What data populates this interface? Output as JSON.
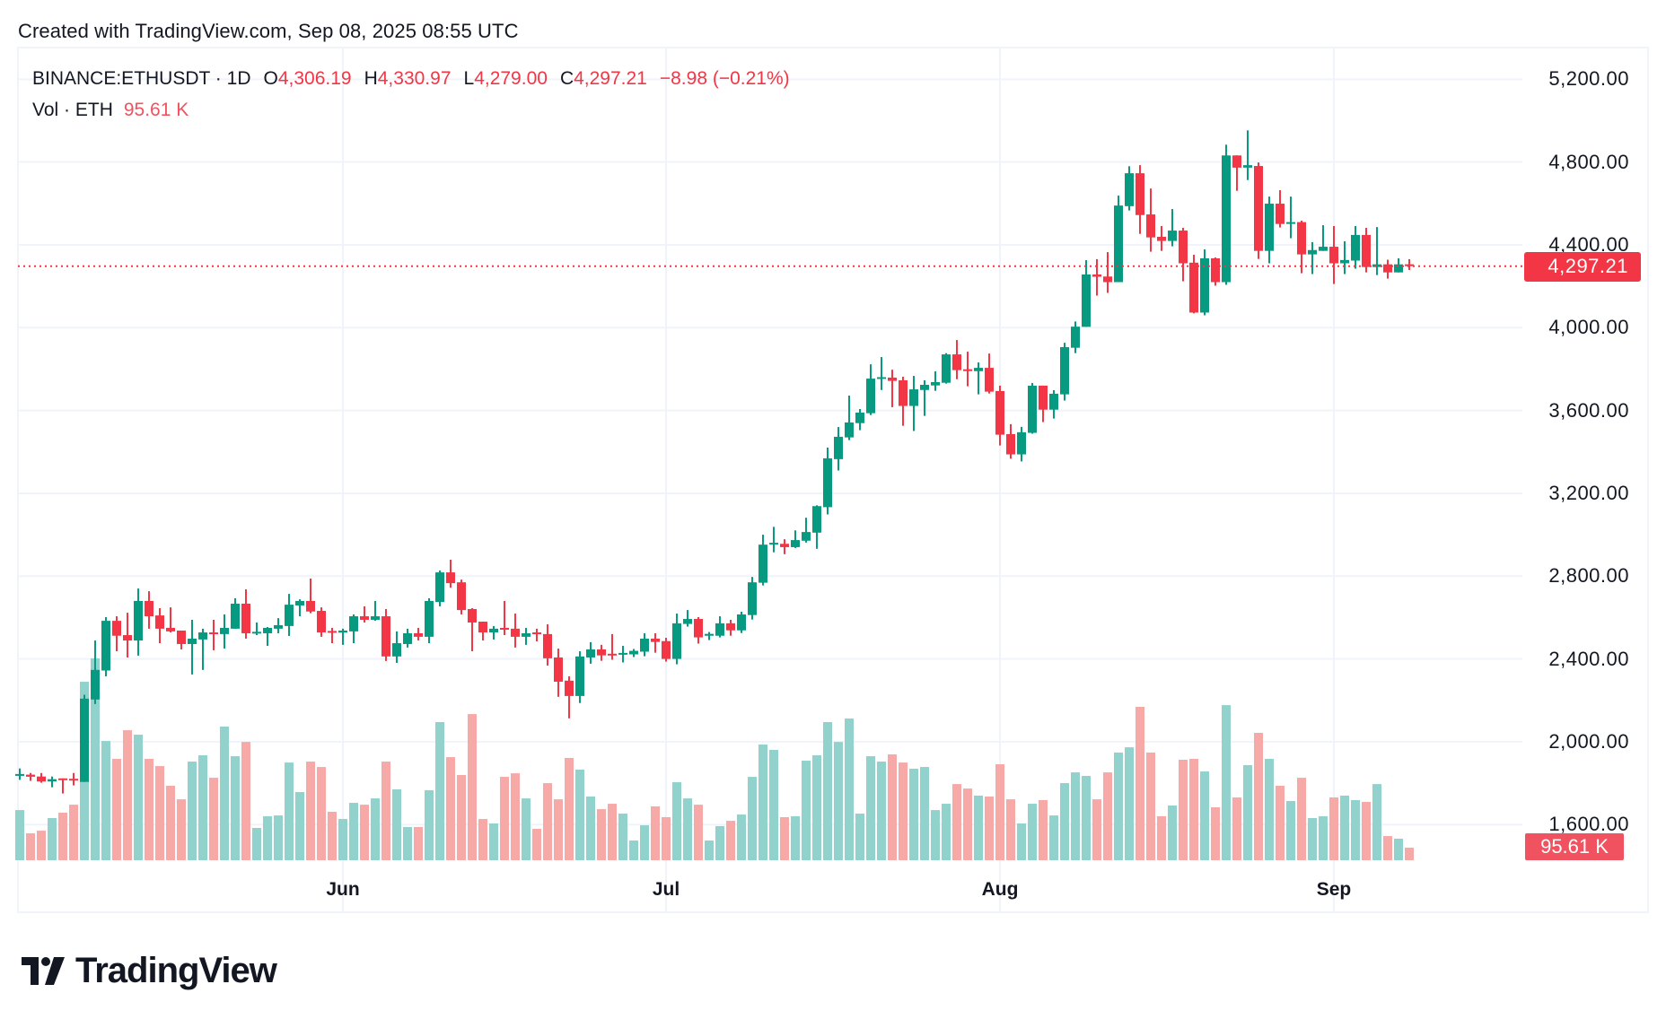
{
  "header": {
    "created_text": "Created with TradingView.com, Sep 08, 2025 08:55 UTC"
  },
  "legend": {
    "symbol": "BINANCE:ETHUSDT · 1D",
    "open_label": "O",
    "open": "4,306.19",
    "high_label": "H",
    "high": "4,330.97",
    "low_label": "L",
    "low": "4,279.00",
    "close_label": "C",
    "close": "4,297.21",
    "change": "−8.98 (−0.21%)",
    "vol_label": "Vol · ETH",
    "vol": "95.61 K"
  },
  "last_price_badge": "4,297.21",
  "last_volume_badge": "95.61 K",
  "logo_text": "TradingView",
  "colors": {
    "up": "#089981",
    "down": "#F23645",
    "vol_up": "#92D2CC",
    "vol_down": "#F7A9A7",
    "grid": "#F0F3FA"
  },
  "chart_data": {
    "type": "candlestick",
    "title": "",
    "symbol": "BINANCE:ETHUSDT",
    "interval": "1D",
    "ylim": [
      1600,
      5200
    ],
    "grid": true,
    "price_ticks": [
      "5,200.00",
      "4,800.00",
      "4,400.00",
      "4,000.00",
      "3,600.00",
      "3,200.00",
      "2,800.00",
      "2,400.00",
      "2,000.00",
      "1,600.00"
    ],
    "price_tick_values": [
      5200,
      4800,
      4400,
      4000,
      3600,
      3200,
      2800,
      2400,
      2000,
      1600
    ],
    "x_ticks": [
      {
        "label": "Jun",
        "date": "2025-06-01"
      },
      {
        "label": "Jul",
        "date": "2025-07-01"
      },
      {
        "label": "Aug",
        "date": "2025-08-01"
      },
      {
        "label": "Sep",
        "date": "2025-09-01"
      }
    ],
    "columns": [
      "date",
      "open",
      "high",
      "low",
      "close",
      "volume_k"
    ],
    "ohlcv": [
      [
        "2025-05-02",
        1838,
        1871,
        1816,
        1844,
        382
      ],
      [
        "2025-05-03",
        1841,
        1849,
        1811,
        1831,
        205
      ],
      [
        "2025-05-04",
        1832,
        1849,
        1802,
        1808,
        225
      ],
      [
        "2025-05-05",
        1808,
        1832,
        1780,
        1819,
        321
      ],
      [
        "2025-05-06",
        1823,
        1823,
        1750,
        1818,
        362
      ],
      [
        "2025-05-07",
        1821,
        1849,
        1789,
        1818,
        423
      ],
      [
        "2025-05-08",
        1806,
        2227,
        1806,
        2208,
        1359
      ],
      [
        "2025-05-09",
        2204,
        2489,
        2182,
        2347,
        1537
      ],
      [
        "2025-05-10",
        2344,
        2602,
        2316,
        2584,
        908
      ],
      [
        "2025-05-11",
        2584,
        2606,
        2437,
        2512,
        772
      ],
      [
        "2025-05-12",
        2515,
        2623,
        2407,
        2489,
        990
      ],
      [
        "2025-05-13",
        2489,
        2740,
        2416,
        2680,
        956
      ],
      [
        "2025-05-14",
        2680,
        2727,
        2546,
        2606,
        772
      ],
      [
        "2025-05-15",
        2610,
        2645,
        2476,
        2546,
        717
      ],
      [
        "2025-05-16",
        2550,
        2649,
        2528,
        2533,
        567
      ],
      [
        "2025-05-17",
        2537,
        2537,
        2446,
        2472,
        464
      ],
      [
        "2025-05-18",
        2472,
        2589,
        2325,
        2498,
        751
      ],
      [
        "2025-05-19",
        2494,
        2546,
        2347,
        2528,
        799
      ],
      [
        "2025-05-20",
        2528,
        2589,
        2442,
        2525,
        628
      ],
      [
        "2025-05-21",
        2520,
        2615,
        2450,
        2550,
        1018
      ],
      [
        "2025-05-22",
        2546,
        2693,
        2546,
        2667,
        792
      ],
      [
        "2025-05-23",
        2667,
        2736,
        2498,
        2524,
        901
      ],
      [
        "2025-05-24",
        2524,
        2576,
        2515,
        2531,
        246
      ],
      [
        "2025-05-25",
        2524,
        2554,
        2463,
        2550,
        335
      ],
      [
        "2025-05-26",
        2546,
        2597,
        2524,
        2563,
        341
      ],
      [
        "2025-05-27",
        2559,
        2714,
        2511,
        2662,
        744
      ],
      [
        "2025-05-28",
        2658,
        2688,
        2606,
        2680,
        519
      ],
      [
        "2025-05-29",
        2680,
        2788,
        2621,
        2629,
        751
      ],
      [
        "2025-05-30",
        2632,
        2649,
        2507,
        2528,
        710
      ],
      [
        "2025-05-31",
        2535,
        2550,
        2476,
        2531,
        369
      ],
      [
        "2025-06-01",
        2527,
        2546,
        2468,
        2537,
        314
      ],
      [
        "2025-06-02",
        2533,
        2615,
        2476,
        2606,
        437
      ],
      [
        "2025-06-03",
        2606,
        2654,
        2576,
        2589,
        423
      ],
      [
        "2025-06-04",
        2589,
        2680,
        2584,
        2606,
        471
      ],
      [
        "2025-06-05",
        2606,
        2641,
        2390,
        2412,
        751
      ],
      [
        "2025-06-06",
        2412,
        2533,
        2381,
        2476,
        540
      ],
      [
        "2025-06-07",
        2472,
        2546,
        2455,
        2524,
        253
      ],
      [
        "2025-06-08",
        2524,
        2550,
        2489,
        2507,
        253
      ],
      [
        "2025-06-09",
        2507,
        2693,
        2476,
        2680,
        533
      ],
      [
        "2025-06-10",
        2675,
        2827,
        2654,
        2818,
        1052
      ],
      [
        "2025-06-11",
        2818,
        2879,
        2744,
        2766,
        785
      ],
      [
        "2025-06-12",
        2770,
        2783,
        2615,
        2636,
        649
      ],
      [
        "2025-06-13",
        2641,
        2645,
        2437,
        2576,
        1113
      ],
      [
        "2025-06-14",
        2580,
        2580,
        2489,
        2528,
        314
      ],
      [
        "2025-06-15",
        2528,
        2559,
        2494,
        2546,
        280
      ],
      [
        "2025-06-16",
        2550,
        2680,
        2515,
        2541,
        635
      ],
      [
        "2025-06-17",
        2546,
        2619,
        2455,
        2507,
        662
      ],
      [
        "2025-06-18",
        2507,
        2550,
        2468,
        2524,
        471
      ],
      [
        "2025-06-19",
        2528,
        2546,
        2485,
        2520,
        239
      ],
      [
        "2025-06-20",
        2520,
        2567,
        2368,
        2403,
        587
      ],
      [
        "2025-06-21",
        2407,
        2450,
        2217,
        2290,
        464
      ],
      [
        "2025-06-22",
        2295,
        2316,
        2113,
        2221,
        779
      ],
      [
        "2025-06-23",
        2221,
        2437,
        2187,
        2412,
        690
      ],
      [
        "2025-06-24",
        2407,
        2481,
        2377,
        2446,
        485
      ],
      [
        "2025-06-25",
        2446,
        2468,
        2391,
        2417,
        389
      ],
      [
        "2025-06-26",
        2425,
        2520,
        2396,
        2417,
        430
      ],
      [
        "2025-06-27",
        2422,
        2463,
        2383,
        2429,
        355
      ],
      [
        "2025-06-28",
        2422,
        2448,
        2409,
        2439,
        150
      ],
      [
        "2025-06-29",
        2435,
        2524,
        2413,
        2498,
        266
      ],
      [
        "2025-06-30",
        2498,
        2524,
        2430,
        2482,
        410
      ],
      [
        "2025-07-01",
        2486,
        2502,
        2387,
        2400,
        328
      ],
      [
        "2025-07-02",
        2400,
        2619,
        2374,
        2572,
        594
      ],
      [
        "2025-07-03",
        2569,
        2636,
        2556,
        2593,
        471
      ],
      [
        "2025-07-04",
        2593,
        2602,
        2474,
        2504,
        423
      ],
      [
        "2025-07-05",
        2512,
        2530,
        2491,
        2521,
        150
      ],
      [
        "2025-07-06",
        2512,
        2606,
        2504,
        2572,
        260
      ],
      [
        "2025-07-07",
        2572,
        2589,
        2512,
        2538,
        300
      ],
      [
        "2025-07-08",
        2538,
        2628,
        2525,
        2615,
        348
      ],
      [
        "2025-07-09",
        2612,
        2796,
        2590,
        2770,
        635
      ],
      [
        "2025-07-10",
        2768,
        3000,
        2755,
        2952,
        881
      ],
      [
        "2025-07-11",
        2953,
        3038,
        2915,
        2961,
        840
      ],
      [
        "2025-07-12",
        2956,
        2978,
        2906,
        2940,
        328
      ],
      [
        "2025-07-13",
        2940,
        3021,
        2936,
        2974,
        335
      ],
      [
        "2025-07-14",
        2971,
        3082,
        2962,
        3013,
        758
      ],
      [
        "2025-07-15",
        3010,
        3142,
        2932,
        3138,
        799
      ],
      [
        "2025-07-16",
        3133,
        3421,
        3098,
        3369,
        1052
      ],
      [
        "2025-07-17",
        3365,
        3520,
        3310,
        3473,
        901
      ],
      [
        "2025-07-18",
        3470,
        3672,
        3457,
        3542,
        1079
      ],
      [
        "2025-07-19",
        3539,
        3607,
        3505,
        3590,
        355
      ],
      [
        "2025-07-20",
        3587,
        3823,
        3578,
        3754,
        792
      ],
      [
        "2025-07-21",
        3756,
        3858,
        3699,
        3761,
        751
      ],
      [
        "2025-07-22",
        3759,
        3797,
        3616,
        3743,
        806
      ],
      [
        "2025-07-23",
        3746,
        3763,
        3526,
        3622,
        744
      ],
      [
        "2025-07-24",
        3622,
        3767,
        3501,
        3702,
        697
      ],
      [
        "2025-07-25",
        3699,
        3746,
        3574,
        3724,
        710
      ],
      [
        "2025-07-26",
        3721,
        3789,
        3695,
        3737,
        382
      ],
      [
        "2025-07-27",
        3734,
        3877,
        3730,
        3871,
        430
      ],
      [
        "2025-07-28",
        3871,
        3940,
        3751,
        3795,
        580
      ],
      [
        "2025-07-29",
        3799,
        3884,
        3717,
        3794,
        546
      ],
      [
        "2025-07-30",
        3790,
        3832,
        3678,
        3806,
        492
      ],
      [
        "2025-07-31",
        3806,
        3875,
        3682,
        3691,
        485
      ],
      [
        "2025-08-01",
        3694,
        3720,
        3431,
        3483,
        731
      ],
      [
        "2025-08-02",
        3486,
        3534,
        3367,
        3388,
        464
      ],
      [
        "2025-08-03",
        3388,
        3521,
        3354,
        3495,
        280
      ],
      [
        "2025-08-04",
        3492,
        3733,
        3488,
        3720,
        430
      ],
      [
        "2025-08-05",
        3720,
        3720,
        3544,
        3604,
        458
      ],
      [
        "2025-08-06",
        3604,
        3698,
        3561,
        3681,
        341
      ],
      [
        "2025-08-07",
        3678,
        3927,
        3648,
        3906,
        587
      ],
      [
        "2025-08-08",
        3903,
        4030,
        3877,
        4005,
        669
      ],
      [
        "2025-08-09",
        4004,
        4326,
        4004,
        4257,
        642
      ],
      [
        "2025-08-10",
        4257,
        4331,
        4155,
        4246,
        464
      ],
      [
        "2025-08-11",
        4247,
        4365,
        4168,
        4220,
        669
      ],
      [
        "2025-08-12",
        4220,
        4638,
        4220,
        4590,
        820
      ],
      [
        "2025-08-13",
        4587,
        4780,
        4566,
        4746,
        860
      ],
      [
        "2025-08-14",
        4746,
        4785,
        4453,
        4544,
        1168
      ],
      [
        "2025-08-15",
        4547,
        4672,
        4367,
        4436,
        820
      ],
      [
        "2025-08-16",
        4439,
        4491,
        4371,
        4419,
        335
      ],
      [
        "2025-08-17",
        4419,
        4573,
        4393,
        4469,
        417
      ],
      [
        "2025-08-18",
        4469,
        4482,
        4224,
        4311,
        765
      ],
      [
        "2025-08-19",
        4314,
        4352,
        4069,
        4073,
        772
      ],
      [
        "2025-08-20",
        4073,
        4378,
        4060,
        4335,
        676
      ],
      [
        "2025-08-21",
        4335,
        4339,
        4203,
        4220,
        403
      ],
      [
        "2025-08-22",
        4220,
        4884,
        4207,
        4832,
        1181
      ],
      [
        "2025-08-23",
        4832,
        4832,
        4661,
        4773,
        478
      ],
      [
        "2025-08-24",
        4773,
        4953,
        4713,
        4785,
        724
      ],
      [
        "2025-08-25",
        4781,
        4798,
        4332,
        4371,
        970
      ],
      [
        "2025-08-26",
        4371,
        4633,
        4311,
        4599,
        772
      ],
      [
        "2025-08-27",
        4599,
        4664,
        4484,
        4501,
        567
      ],
      [
        "2025-08-28",
        4505,
        4633,
        4432,
        4510,
        451
      ],
      [
        "2025-08-29",
        4510,
        4517,
        4263,
        4354,
        628
      ],
      [
        "2025-08-30",
        4354,
        4413,
        4259,
        4375,
        321
      ],
      [
        "2025-08-31",
        4371,
        4495,
        4371,
        4391,
        335
      ],
      [
        "2025-09-01",
        4391,
        4491,
        4211,
        4311,
        478
      ],
      [
        "2025-09-02",
        4311,
        4417,
        4259,
        4327,
        492
      ],
      [
        "2025-09-03",
        4324,
        4491,
        4285,
        4448,
        458
      ],
      [
        "2025-09-04",
        4448,
        4482,
        4267,
        4293,
        444
      ],
      [
        "2025-09-05",
        4293,
        4486,
        4254,
        4306,
        580
      ],
      [
        "2025-09-06",
        4306,
        4328,
        4237,
        4267,
        184
      ],
      [
        "2025-09-07",
        4267,
        4335,
        4267,
        4306,
        164
      ],
      [
        "2025-09-08",
        4306.19,
        4330.97,
        4279.0,
        4297.21,
        95.61
      ]
    ],
    "last_price": 4297.21
  }
}
